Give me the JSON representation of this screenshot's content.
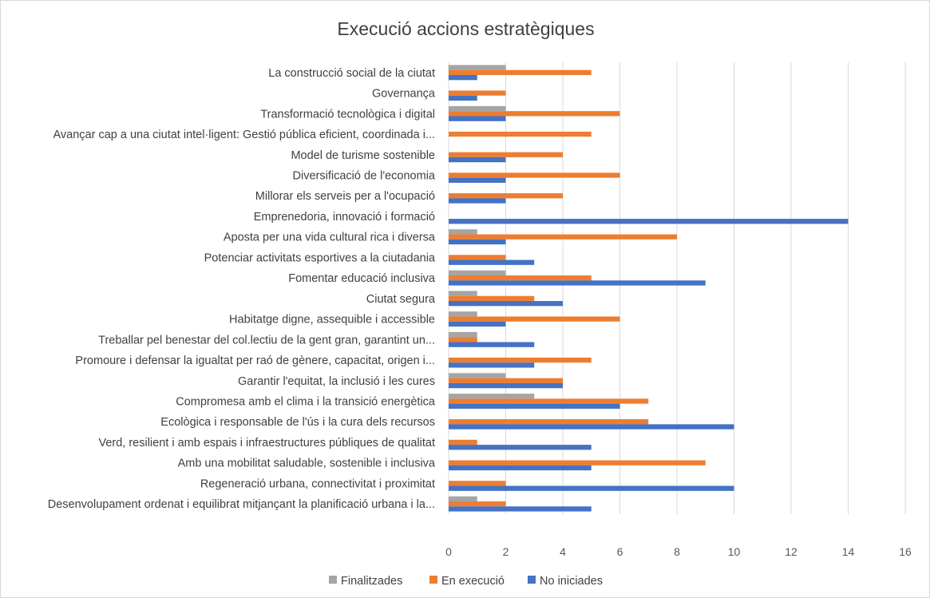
{
  "chart_data": {
    "type": "bar",
    "orientation": "horizontal",
    "title": "Execució accions estratègiques",
    "xlabel": "",
    "ylabel": "",
    "xlim": [
      0,
      16
    ],
    "xticks": [
      "0",
      "2",
      "4",
      "6",
      "8",
      "10",
      "12",
      "14",
      "16"
    ],
    "grid": true,
    "legend_position": "bottom",
    "categories": [
      "La construcció social de la ciutat",
      "Governança",
      "Transformació tecnològica i digital",
      "Avançar cap a una ciutat intel·ligent: Gestió pública eficient, coordinada i...",
      "Model de turisme sostenible",
      "Diversificació de l'economia",
      "Millorar els serveis per a l'ocupació",
      "Emprenedoria, innovació i formació",
      "Aposta per una vida cultural rica i diversa",
      "Potenciar activitats esportives a la ciutadania",
      "Fomentar educació inclusiva",
      "Ciutat segura",
      "Habitatge digne, assequible i accessible",
      "Treballar pel benestar del col.lectiu de la gent gran, garantint un...",
      "Promoure i defensar la igualtat per raó de gènere, capacitat, origen i...",
      "Garantir l'equitat, la inclusió i les cures",
      "Compromesa amb el clima i la transició energètica",
      "Ecològica i responsable de l'ús i la cura dels recursos",
      "Verd, resilient i amb espais i infraestructures públiques de qualitat",
      "Amb una mobilitat saludable, sostenible i inclusiva",
      "Regeneració urbana, connectivitat i proximitat",
      "Desenvolupament ordenat i equilibrat mitjançant la planificació urbana i la..."
    ],
    "series": [
      {
        "name": "Finalitzades",
        "color": "#a5a5a5",
        "values": [
          2,
          0,
          2,
          0,
          0,
          0,
          0,
          0,
          1,
          0,
          2,
          1,
          1,
          1,
          0,
          2,
          3,
          0,
          0,
          0,
          0,
          1
        ]
      },
      {
        "name": "En execució",
        "color": "#ed7d31",
        "values": [
          5,
          2,
          6,
          5,
          4,
          6,
          4,
          0,
          8,
          2,
          5,
          3,
          6,
          1,
          5,
          4,
          7,
          7,
          1,
          9,
          2,
          2
        ]
      },
      {
        "name": "No iniciades",
        "color": "#4472c4",
        "values": [
          1,
          1,
          2,
          0,
          2,
          2,
          2,
          14,
          2,
          3,
          9,
          4,
          2,
          3,
          3,
          4,
          6,
          10,
          5,
          5,
          10,
          5
        ]
      }
    ]
  }
}
